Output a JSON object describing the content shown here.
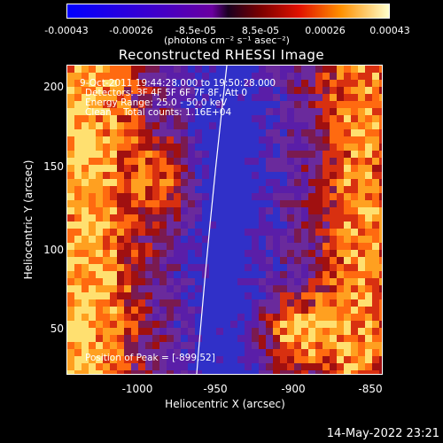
{
  "colorbar": {
    "tick_labels": [
      "-0.00043",
      "-0.00026",
      "-8.5e-05",
      "8.5e-05",
      "0.00026",
      "0.00043"
    ],
    "unit": "(photons cm⁻² s⁻¹ asec⁻²)"
  },
  "title": "Reconstructed RHESSI Image",
  "info": {
    "time_range": "9-Oct-2011 19:44:28.000 to 19:50:28.000",
    "detectors": "Detectors: 3F 4F 5F 6F 7F 8F, Att 0",
    "energy": "Energy Range: 25.0 - 50.0 keV",
    "clean": "Clean    Total counts: 1.16E+04",
    "peak": "Position of Peak = [-899,52]"
  },
  "axes": {
    "x_label": "Heliocentric X (arcsec)",
    "y_label": "Heliocentric Y (arcsec)",
    "x_ticks": [
      "-1000",
      "-950",
      "-900",
      "-850"
    ],
    "y_ticks": [
      "200",
      "150",
      "100",
      "50"
    ],
    "x_range": [
      -1045,
      -845
    ],
    "y_range": [
      22,
      220
    ]
  },
  "footer": {
    "timestamp": "14-May-2022 23:21"
  }
}
